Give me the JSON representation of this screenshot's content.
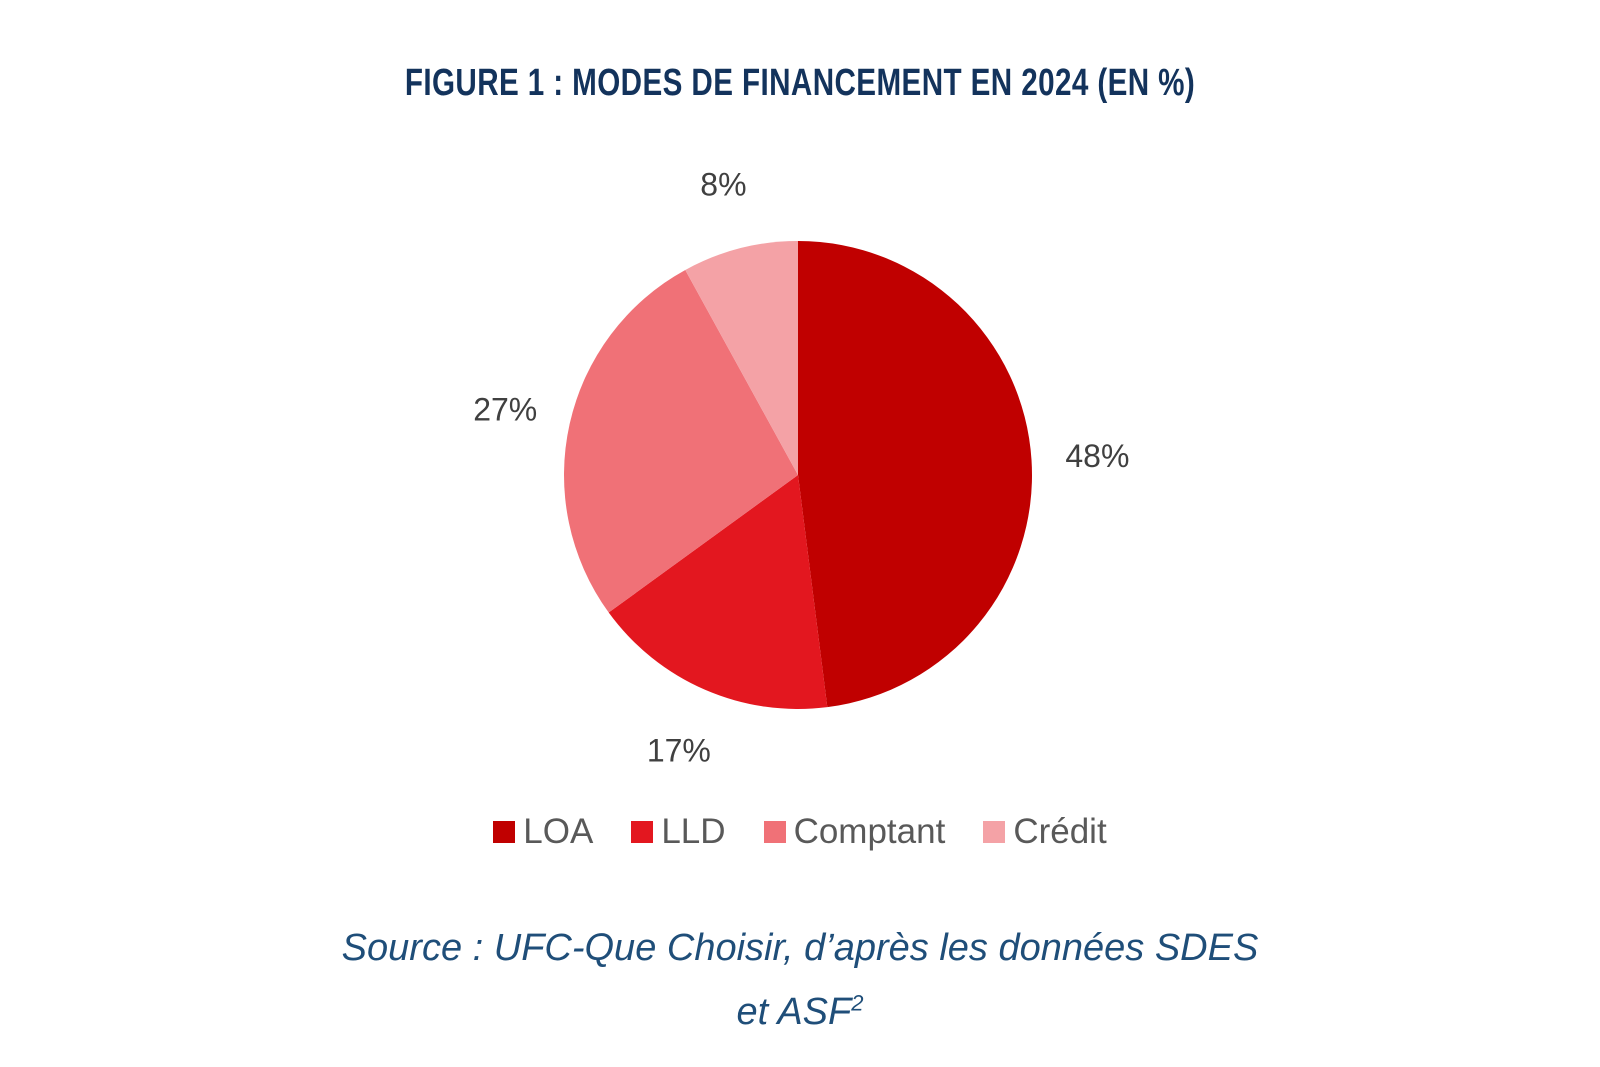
{
  "title": "FIGURE 1 : MODES DE FINANCEMENT EN 2024 (EN %)",
  "chart_data": {
    "type": "pie",
    "title": "FIGURE 1 : MODES DE FINANCEMENT EN 2024 (EN %)",
    "legend_position": "bottom",
    "slices": [
      {
        "label": "LOA",
        "value": 48,
        "display": "48%",
        "color": "#c00000"
      },
      {
        "label": "LLD",
        "value": 17,
        "display": "17%",
        "color": "#e3171f"
      },
      {
        "label": "Comptant",
        "value": 27,
        "display": "27%",
        "color": "#f07177"
      },
      {
        "label": "Crédit",
        "value": 8,
        "display": "8%",
        "color": "#f4a2a6"
      }
    ]
  },
  "source": {
    "line1": "Source : UFC-Que Choisir, d’après les données SDES",
    "line2": "et ASF",
    "footnote": "2"
  }
}
